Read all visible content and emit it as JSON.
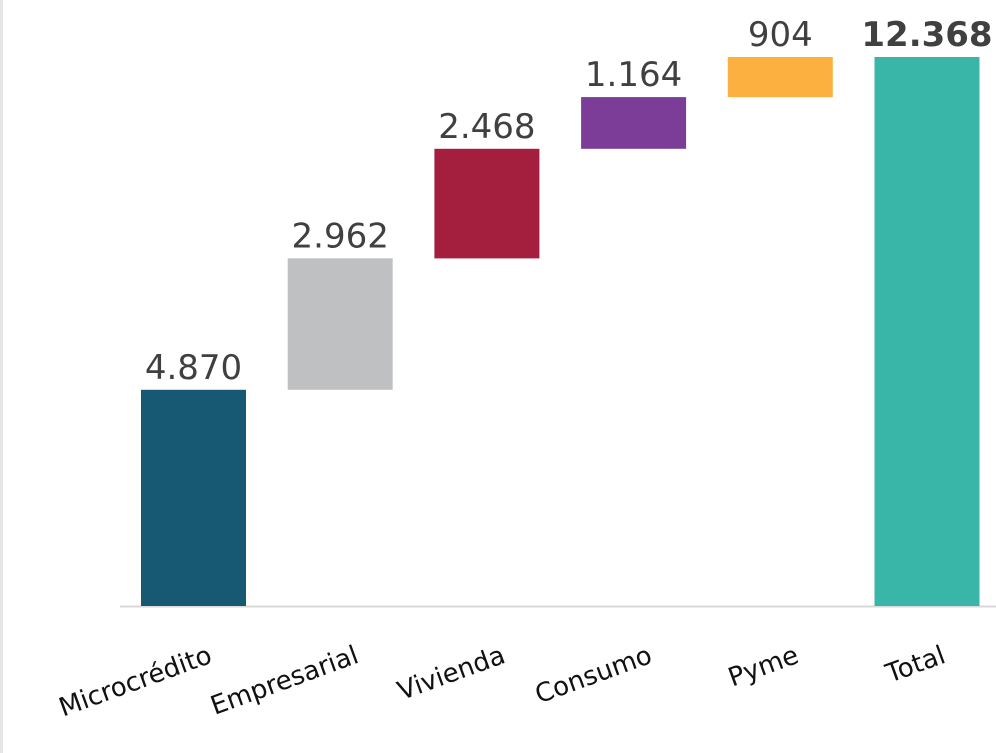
{
  "chart_data": {
    "type": "bar",
    "subtype": "waterfall",
    "categories": [
      "Microcrédito",
      "Empresarial",
      "Vivienda",
      "Consumo",
      "Pyme",
      "Total"
    ],
    "values": [
      4870,
      2962,
      2468,
      1164,
      904,
      12368
    ],
    "value_labels": [
      "4.870",
      "2.962",
      "2.468",
      "1.164",
      "904",
      "12.368"
    ],
    "colors": [
      "#175873",
      "#bfc0c2",
      "#a41f3e",
      "#7b3d97",
      "#fbb040",
      "#3ab6a9"
    ],
    "total_index": 5,
    "ylim": [
      0,
      12368
    ],
    "grid": false,
    "legend": "none",
    "title": "",
    "xlabel": "",
    "ylabel": ""
  }
}
